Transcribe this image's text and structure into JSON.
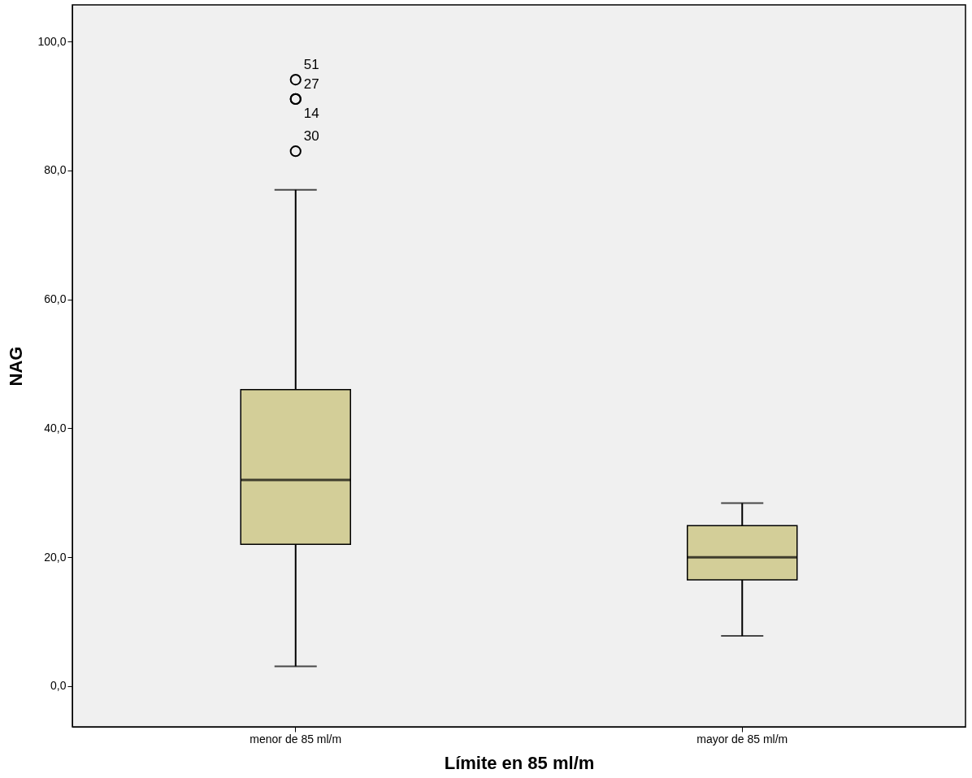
{
  "chart_data": {
    "type": "box",
    "xlabel": "Límite en 85 ml/m",
    "ylabel": "NAG",
    "categories": [
      "menor de 85 ml/m",
      "mayor de 85 ml/m"
    ],
    "series": [
      {
        "color": "#d3ce98",
        "boxes": [
          {
            "low": 3.1,
            "q1": 22.0,
            "median": 32.0,
            "q3": 46.0,
            "high": 77.0,
            "outliers": [
              94.1,
              91.1,
              91.1,
              83.0
            ]
          },
          {
            "low": 7.8,
            "q1": 16.5,
            "median": 20.0,
            "q3": 24.9,
            "high": 28.4
          }
        ]
      }
    ],
    "ylim": [
      -6.3,
      105.7
    ],
    "yticks": [
      {
        "value": 0,
        "label": "0,0"
      },
      {
        "value": 20,
        "label": "20,0"
      },
      {
        "value": 40,
        "label": "40,0"
      },
      {
        "value": 60,
        "label": "60,0"
      },
      {
        "value": 80,
        "label": "80,0"
      },
      {
        "value": 100,
        "label": "100,0"
      }
    ],
    "annotations": [
      "51",
      "27",
      "14",
      "30"
    ],
    "grid": false
  }
}
